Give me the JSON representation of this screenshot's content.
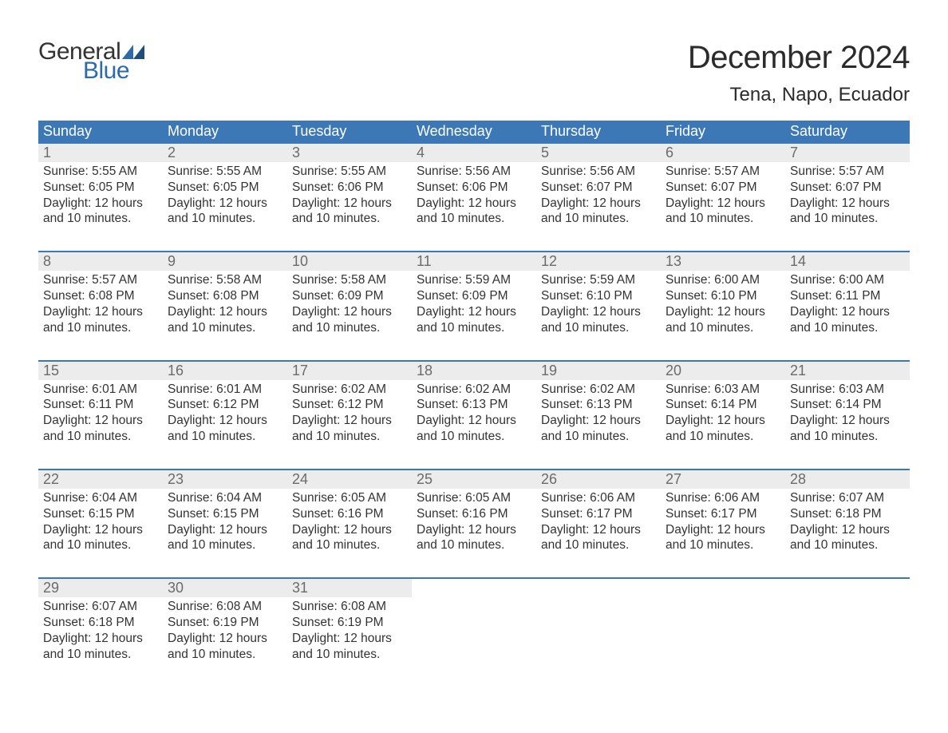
{
  "logo": {
    "top": "General",
    "bottom": "Blue",
    "accent_color": "#2f6aa8"
  },
  "title": "December 2024",
  "location": "Tena, Napo, Ecuador",
  "colors": {
    "header_bg": "#3b78b5",
    "header_text": "#ffffff",
    "row_border": "#3b78b5",
    "daynum_bg": "#ececec",
    "daynum_text": "#6b6b6b",
    "body_text": "#333333",
    "background": "#ffffff"
  },
  "fonts": {
    "title_size_pt": 30,
    "location_size_pt": 18,
    "header_size_pt": 14,
    "body_size_pt": 12
  },
  "day_headers": [
    "Sunday",
    "Monday",
    "Tuesday",
    "Wednesday",
    "Thursday",
    "Friday",
    "Saturday"
  ],
  "daylight_text": "Daylight: 12 hours and 10 minutes.",
  "weeks": [
    [
      {
        "n": "1",
        "sr": "5:55 AM",
        "ss": "6:05 PM"
      },
      {
        "n": "2",
        "sr": "5:55 AM",
        "ss": "6:05 PM"
      },
      {
        "n": "3",
        "sr": "5:55 AM",
        "ss": "6:06 PM"
      },
      {
        "n": "4",
        "sr": "5:56 AM",
        "ss": "6:06 PM"
      },
      {
        "n": "5",
        "sr": "5:56 AM",
        "ss": "6:07 PM"
      },
      {
        "n": "6",
        "sr": "5:57 AM",
        "ss": "6:07 PM"
      },
      {
        "n": "7",
        "sr": "5:57 AM",
        "ss": "6:07 PM"
      }
    ],
    [
      {
        "n": "8",
        "sr": "5:57 AM",
        "ss": "6:08 PM"
      },
      {
        "n": "9",
        "sr": "5:58 AM",
        "ss": "6:08 PM"
      },
      {
        "n": "10",
        "sr": "5:58 AM",
        "ss": "6:09 PM"
      },
      {
        "n": "11",
        "sr": "5:59 AM",
        "ss": "6:09 PM"
      },
      {
        "n": "12",
        "sr": "5:59 AM",
        "ss": "6:10 PM"
      },
      {
        "n": "13",
        "sr": "6:00 AM",
        "ss": "6:10 PM"
      },
      {
        "n": "14",
        "sr": "6:00 AM",
        "ss": "6:11 PM"
      }
    ],
    [
      {
        "n": "15",
        "sr": "6:01 AM",
        "ss": "6:11 PM"
      },
      {
        "n": "16",
        "sr": "6:01 AM",
        "ss": "6:12 PM"
      },
      {
        "n": "17",
        "sr": "6:02 AM",
        "ss": "6:12 PM"
      },
      {
        "n": "18",
        "sr": "6:02 AM",
        "ss": "6:13 PM"
      },
      {
        "n": "19",
        "sr": "6:02 AM",
        "ss": "6:13 PM"
      },
      {
        "n": "20",
        "sr": "6:03 AM",
        "ss": "6:14 PM"
      },
      {
        "n": "21",
        "sr": "6:03 AM",
        "ss": "6:14 PM"
      }
    ],
    [
      {
        "n": "22",
        "sr": "6:04 AM",
        "ss": "6:15 PM"
      },
      {
        "n": "23",
        "sr": "6:04 AM",
        "ss": "6:15 PM"
      },
      {
        "n": "24",
        "sr": "6:05 AM",
        "ss": "6:16 PM"
      },
      {
        "n": "25",
        "sr": "6:05 AM",
        "ss": "6:16 PM"
      },
      {
        "n": "26",
        "sr": "6:06 AM",
        "ss": "6:17 PM"
      },
      {
        "n": "27",
        "sr": "6:06 AM",
        "ss": "6:17 PM"
      },
      {
        "n": "28",
        "sr": "6:07 AM",
        "ss": "6:18 PM"
      }
    ],
    [
      {
        "n": "29",
        "sr": "6:07 AM",
        "ss": "6:18 PM"
      },
      {
        "n": "30",
        "sr": "6:08 AM",
        "ss": "6:19 PM"
      },
      {
        "n": "31",
        "sr": "6:08 AM",
        "ss": "6:19 PM"
      },
      null,
      null,
      null,
      null
    ]
  ]
}
